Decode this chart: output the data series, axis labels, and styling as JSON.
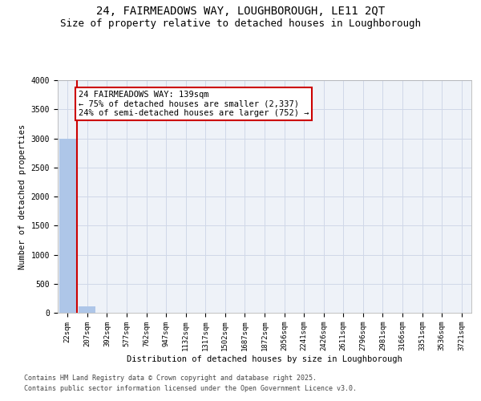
{
  "title_line1": "24, FAIRMEADOWS WAY, LOUGHBOROUGH, LE11 2QT",
  "title_line2": "Size of property relative to detached houses in Loughborough",
  "xlabel": "Distribution of detached houses by size in Loughborough",
  "ylabel": "Number of detached properties",
  "bar_labels": [
    "22sqm",
    "207sqm",
    "392sqm",
    "577sqm",
    "762sqm",
    "947sqm",
    "1132sqm",
    "1317sqm",
    "1502sqm",
    "1687sqm",
    "1872sqm",
    "2056sqm",
    "2241sqm",
    "2426sqm",
    "2611sqm",
    "2796sqm",
    "2981sqm",
    "3166sqm",
    "3351sqm",
    "3536sqm",
    "3721sqm"
  ],
  "bar_values": [
    3000,
    110,
    0,
    0,
    0,
    0,
    0,
    0,
    0,
    0,
    0,
    0,
    0,
    0,
    0,
    0,
    0,
    0,
    0,
    0,
    0
  ],
  "bar_color": "#aec6e8",
  "grid_color": "#d0d8e8",
  "background_color": "#eef2f8",
  "annotation_text": "24 FAIRMEADOWS WAY: 139sqm\n← 75% of detached houses are smaller (2,337)\n24% of semi-detached houses are larger (752) →",
  "property_line_x": 0.48,
  "ylim": [
    0,
    4000
  ],
  "yticks": [
    0,
    500,
    1000,
    1500,
    2000,
    2500,
    3000,
    3500,
    4000
  ],
  "annotation_box_color": "#ffffff",
  "annotation_border_color": "#cc0000",
  "vline_color": "#cc0000",
  "footer_line1": "Contains HM Land Registry data © Crown copyright and database right 2025.",
  "footer_line2": "Contains public sector information licensed under the Open Government Licence v3.0.",
  "title_fontsize": 10,
  "subtitle_fontsize": 9,
  "axis_label_fontsize": 7.5,
  "tick_fontsize": 6.5,
  "annotation_fontsize": 7.5,
  "footer_fontsize": 6
}
